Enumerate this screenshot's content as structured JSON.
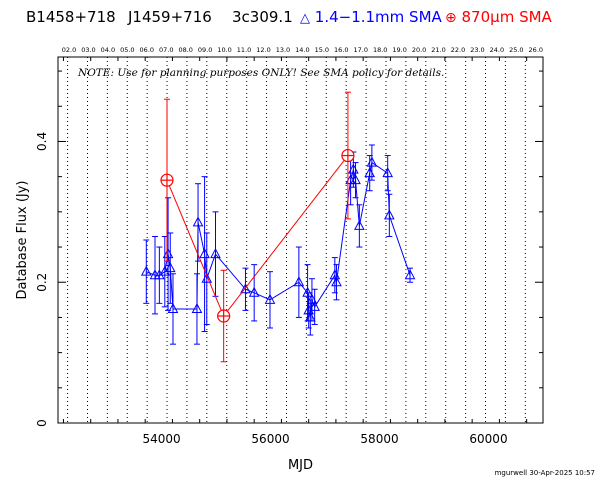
{
  "header": {
    "source": "B1458+718",
    "alias1": "J1459+716",
    "alias2": "3c309.1",
    "legend_sma": "1.4−1.1mm SMA",
    "legend_870": "870μm SMA"
  },
  "note": "NOTE: Use for planning purposes ONLY!  See SMA policy for details.",
  "footer_stamp": "mgurwell 30-Apr-2025 10:57",
  "colors": {
    "blue": "#0000ff",
    "red": "#ff0000",
    "axis": "#000000"
  },
  "chart_data": {
    "type": "scatter",
    "title": "",
    "xlabel": "MJD",
    "ylabel": "Database Flux (Jy)",
    "xlim": [
      52100,
      61000
    ],
    "ylim": [
      0,
      0.52
    ],
    "x_ticks": [
      54000,
      56000,
      58000,
      60000
    ],
    "x_tick_labels": [
      "54000",
      "56000",
      "58000",
      "60000"
    ],
    "y_ticks": [
      0,
      0.2,
      0.4
    ],
    "y_tick_labels": [
      "0",
      "0.2",
      "0.4"
    ],
    "top_axis_labels": [
      "02.0",
      "03.0",
      "04.0",
      "05.0",
      "06.0",
      "07.0",
      "08.0",
      "09.0",
      "10.0",
      "11.0",
      "12.0",
      "13.0",
      "14.0",
      "15.0",
      "16.0",
      "17.0",
      "18.0",
      "19.0",
      "20.0",
      "21.0",
      "22.0",
      "23.0",
      "24.0",
      "25.0",
      "26.0"
    ],
    "year_lines_mjd": [
      52276,
      52641,
      53006,
      53371,
      53736,
      54101,
      54466,
      54831,
      55197,
      55562,
      55927,
      56293,
      56658,
      57023,
      57388,
      57754,
      58119,
      58484,
      58849,
      59215,
      59580,
      59945,
      60310,
      60676
    ],
    "series": [
      {
        "name": "1.4−1.1mm SMA",
        "color": "#0000ff",
        "marker": "triangle",
        "points": [
          {
            "x": 53720,
            "y": 0.215,
            "err": 0.045
          },
          {
            "x": 53880,
            "y": 0.21,
            "err": 0.055
          },
          {
            "x": 53960,
            "y": 0.21,
            "err": 0.04
          },
          {
            "x": 54060,
            "y": 0.215,
            "err": 0.05
          },
          {
            "x": 54120,
            "y": 0.24,
            "err": 0.08
          },
          {
            "x": 54160,
            "y": 0.22,
            "err": 0.05
          },
          {
            "x": 54210,
            "y": 0.162,
            "err": 0.05
          },
          {
            "x": 54650,
            "y": 0.162,
            "err": 0.05
          },
          {
            "x": 54670,
            "y": 0.285,
            "err": 0.055
          },
          {
            "x": 54790,
            "y": 0.24,
            "err": 0.11
          },
          {
            "x": 54830,
            "y": 0.205,
            "err": 0.065
          },
          {
            "x": 54990,
            "y": 0.24,
            "err": 0.06
          },
          {
            "x": 55540,
            "y": 0.19,
            "err": 0.03
          },
          {
            "x": 55700,
            "y": 0.185,
            "err": 0.04
          },
          {
            "x": 55990,
            "y": 0.175,
            "err": 0.04
          },
          {
            "x": 56520,
            "y": 0.2,
            "err": 0.05
          },
          {
            "x": 56680,
            "y": 0.185,
            "err": 0.04
          },
          {
            "x": 56700,
            "y": 0.16,
            "err": 0.025
          },
          {
            "x": 56730,
            "y": 0.15,
            "err": 0.025
          },
          {
            "x": 56760,
            "y": 0.175,
            "err": 0.03
          },
          {
            "x": 56810,
            "y": 0.165,
            "err": 0.025
          },
          {
            "x": 57180,
            "y": 0.21,
            "err": 0.025
          },
          {
            "x": 57210,
            "y": 0.2,
            "err": 0.025
          },
          {
            "x": 57470,
            "y": 0.345,
            "err": 0.035
          },
          {
            "x": 57520,
            "y": 0.36,
            "err": 0.025
          },
          {
            "x": 57560,
            "y": 0.345,
            "err": 0.025
          },
          {
            "x": 57630,
            "y": 0.28,
            "err": 0.03
          },
          {
            "x": 57820,
            "y": 0.355,
            "err": 0.025
          },
          {
            "x": 57860,
            "y": 0.37,
            "err": 0.025
          },
          {
            "x": 58150,
            "y": 0.355,
            "err": 0.025
          },
          {
            "x": 58180,
            "y": 0.295,
            "err": 0.03
          },
          {
            "x": 58560,
            "y": 0.21,
            "err": 0.01
          }
        ]
      },
      {
        "name": "870μm SMA",
        "color": "#ff0000",
        "marker": "circle-plus",
        "points": [
          {
            "x": 54100,
            "y": 0.345,
            "err": 0.115
          },
          {
            "x": 55140,
            "y": 0.152,
            "err": 0.065
          },
          {
            "x": 57420,
            "y": 0.38,
            "err": 0.09
          }
        ]
      }
    ]
  }
}
